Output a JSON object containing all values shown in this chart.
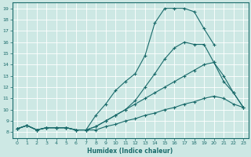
{
  "xlabel": "Humidex (Indice chaleur)",
  "xlim": [
    -0.5,
    23.5
  ],
  "ylim": [
    7.5,
    19.5
  ],
  "xticks": [
    0,
    1,
    2,
    3,
    4,
    5,
    6,
    7,
    8,
    9,
    10,
    11,
    12,
    13,
    14,
    15,
    16,
    17,
    18,
    19,
    20,
    21,
    22,
    23
  ],
  "yticks": [
    8,
    9,
    10,
    11,
    12,
    13,
    14,
    15,
    16,
    17,
    18,
    19
  ],
  "bg_color": "#cde8e4",
  "line_color": "#1a6b6b",
  "grid_color": "#ffffff",
  "lines": [
    {
      "x": [
        0,
        1,
        2,
        3,
        4,
        5,
        6,
        7,
        8,
        9,
        10,
        11,
        12,
        13,
        14,
        15,
        16,
        17,
        18,
        19,
        20,
        21
      ],
      "y": [
        8.3,
        8.6,
        8.2,
        8.4,
        8.4,
        8.4,
        8.2,
        8.2,
        9.5,
        10.5,
        11.7,
        12.5,
        13.2,
        14.8,
        17.7,
        19.0,
        19.0,
        19.0,
        18.7,
        17.2,
        15.8,
        null
      ]
    },
    {
      "x": [
        0,
        1,
        2,
        3,
        4,
        5,
        6,
        7,
        8,
        9,
        10,
        11,
        12,
        13,
        14,
        15,
        16,
        17,
        18,
        19,
        20,
        21,
        22,
        23
      ],
      "y": [
        8.3,
        8.6,
        8.2,
        8.4,
        8.4,
        8.4,
        8.2,
        8.2,
        8.5,
        9.0,
        9.5,
        10.0,
        10.8,
        12.0,
        13.2,
        14.5,
        15.5,
        16.0,
        15.8,
        15.8,
        14.2,
        12.5,
        11.5,
        10.2
      ]
    },
    {
      "x": [
        0,
        1,
        2,
        3,
        4,
        5,
        6,
        7,
        8,
        9,
        10,
        11,
        12,
        13,
        14,
        15,
        16,
        17,
        18,
        19,
        20,
        21,
        22,
        23
      ],
      "y": [
        8.3,
        8.6,
        8.2,
        8.4,
        8.4,
        8.4,
        8.2,
        8.2,
        8.5,
        9.0,
        9.5,
        10.0,
        10.5,
        11.0,
        11.5,
        12.0,
        12.5,
        13.0,
        13.5,
        14.0,
        14.2,
        13.0,
        11.5,
        10.2
      ]
    },
    {
      "x": [
        0,
        1,
        2,
        3,
        4,
        5,
        6,
        7,
        8,
        9,
        10,
        11,
        12,
        13,
        14,
        15,
        16,
        17,
        18,
        19,
        20,
        21,
        22,
        23
      ],
      "y": [
        8.3,
        8.6,
        8.2,
        8.4,
        8.4,
        8.4,
        8.2,
        8.2,
        8.2,
        8.5,
        8.7,
        9.0,
        9.2,
        9.5,
        9.7,
        10.0,
        10.2,
        10.5,
        10.7,
        11.0,
        11.2,
        11.0,
        10.5,
        10.2
      ]
    }
  ]
}
